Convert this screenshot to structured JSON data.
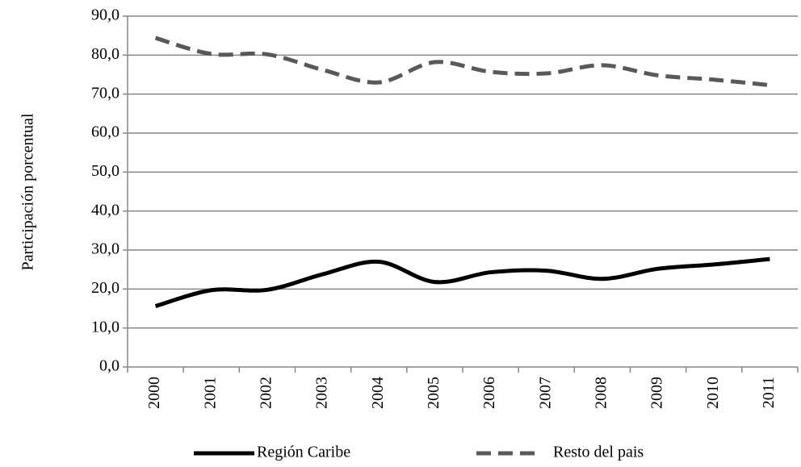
{
  "chart_data": {
    "type": "line",
    "y_label": "Participación porcentual",
    "categories": [
      "2000",
      "2001",
      "2002",
      "2003",
      "2004",
      "2005",
      "2006",
      "2007",
      "2008",
      "2009",
      "2010",
      "2011"
    ],
    "series": [
      {
        "name": "Región Caribe",
        "color": "#000000",
        "line_style": "solid",
        "values": [
          15.6,
          19.7,
          19.8,
          23.8,
          27.0,
          21.8,
          24.3,
          24.7,
          22.6,
          25.2,
          26.3,
          27.7
        ]
      },
      {
        "name": "Resto del pais",
        "color": "#595959",
        "line_style": "dashed",
        "values": [
          84.4,
          80.3,
          80.2,
          76.2,
          73.0,
          78.2,
          75.7,
          75.3,
          77.4,
          74.8,
          73.7,
          72.3
        ]
      }
    ],
    "ylim": [
      0,
      90
    ],
    "yticks": [
      {
        "value": 0,
        "label": "0,0"
      },
      {
        "value": 10,
        "label": "10,0"
      },
      {
        "value": 20,
        "label": "20,0"
      },
      {
        "value": 30,
        "label": "30,0"
      },
      {
        "value": 40,
        "label": "40,0"
      },
      {
        "value": 50,
        "label": "50,0"
      },
      {
        "value": 60,
        "label": "60,0"
      },
      {
        "value": 70,
        "label": "70,0"
      },
      {
        "value": 80,
        "label": "80,0"
      },
      {
        "value": 90,
        "label": "90,0"
      }
    ],
    "grid": true,
    "smooth": true,
    "legend": "bottom"
  }
}
